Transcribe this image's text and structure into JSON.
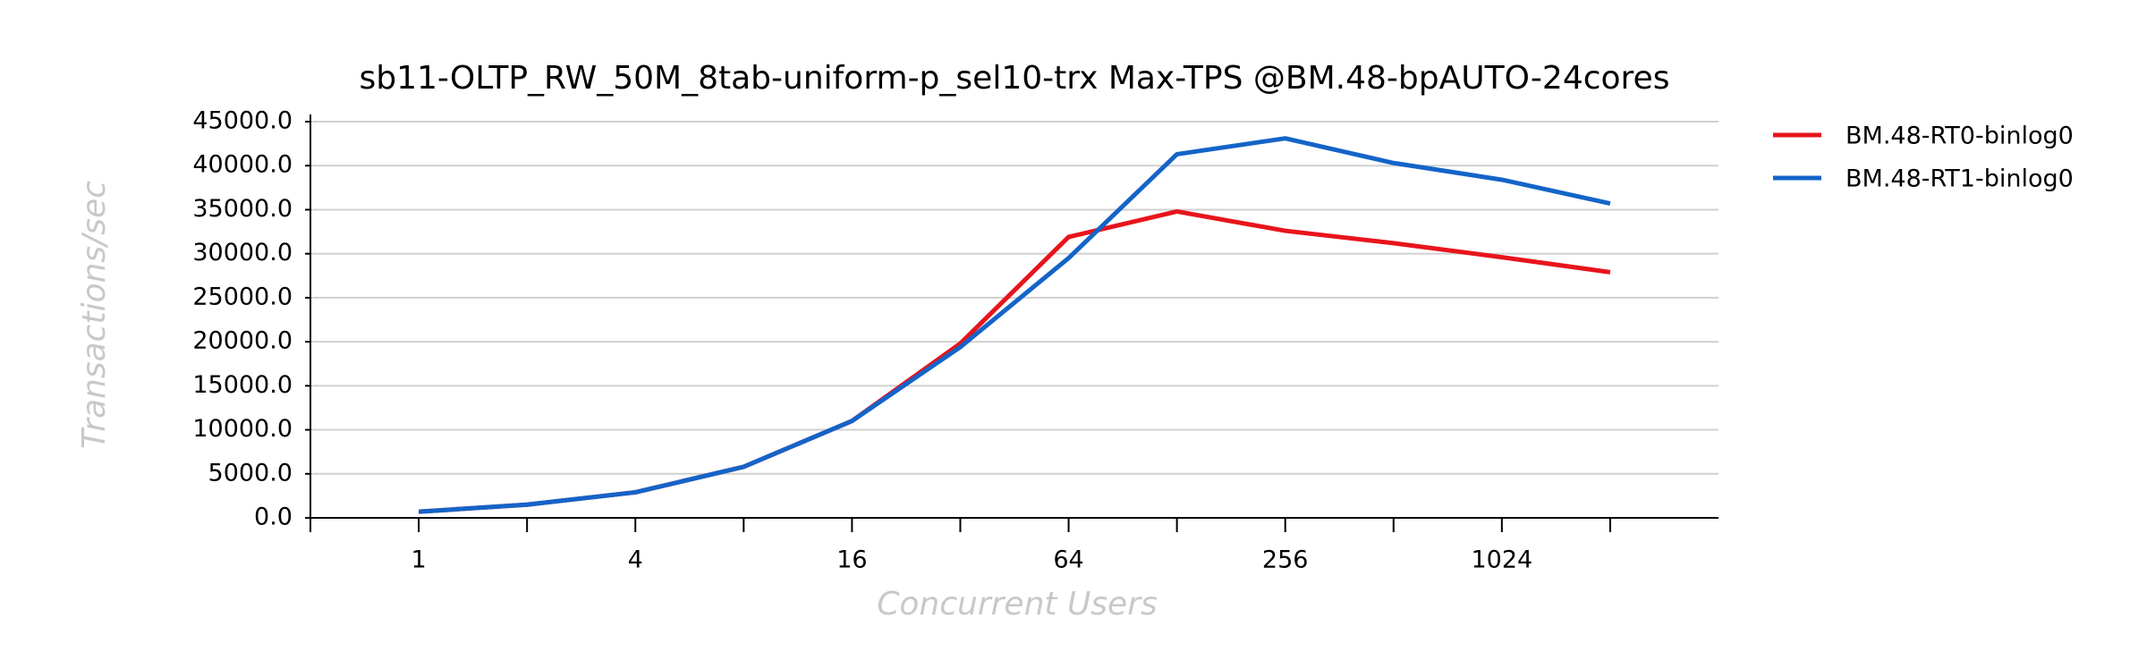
{
  "chart_data": {
    "type": "line",
    "title": "sb11-OLTP_RW_50M_8tab-uniform-p_sel10-trx Max-TPS @BM.48-bpAUTO-24cores",
    "x_label": "Concurrent Users",
    "y_label": "Transactions/sec",
    "categories": [
      "1",
      null,
      "4",
      null,
      "16",
      null,
      "64",
      null,
      "256",
      null,
      "1024",
      null
    ],
    "series": [
      {
        "name": "BM.48-RT0-binlog0",
        "color": "#e8141c",
        "values": [
          700,
          1500,
          2900,
          5800,
          11000,
          19800,
          31900,
          34800,
          32600,
          31200,
          29600,
          27900
        ]
      },
      {
        "name": "BM.48-RT1-binlog0",
        "color": "#1464c8",
        "values": [
          700,
          1500,
          2900,
          5800,
          11000,
          19400,
          29500,
          41300,
          43100,
          40300,
          38400,
          35700
        ]
      }
    ],
    "ylim": [
      0,
      45000
    ],
    "yticks": [
      {
        "value": 0,
        "label": "0.0"
      },
      {
        "value": 5000,
        "label": "5000.0"
      },
      {
        "value": 10000,
        "label": "10000.0"
      },
      {
        "value": 15000,
        "label": "15000.0"
      },
      {
        "value": 20000,
        "label": "20000.0"
      },
      {
        "value": 25000,
        "label": "25000.0"
      },
      {
        "value": 30000,
        "label": "30000.0"
      },
      {
        "value": 35000,
        "label": "35000.0"
      },
      {
        "value": 40000,
        "label": "40000.0"
      },
      {
        "value": 45000,
        "label": "45000.0"
      }
    ],
    "grid": true,
    "legend": "right"
  }
}
